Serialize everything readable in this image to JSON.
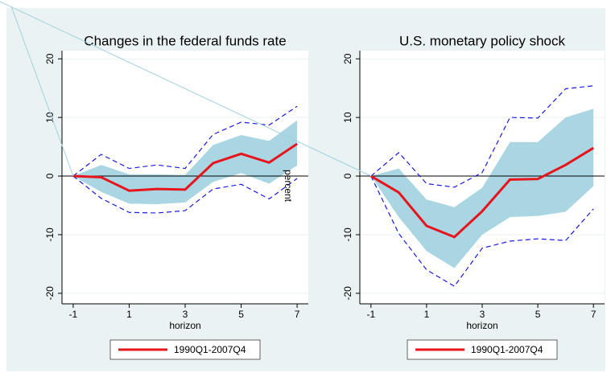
{
  "chart_data": [
    {
      "type": "line",
      "title": "Changes in the federal funds rate",
      "xlabel": "horizon",
      "ylabel": "percent",
      "x": [
        -1,
        0,
        1,
        2,
        3,
        4,
        5,
        6,
        7
      ],
      "xlim": [
        -1.4,
        7.4
      ],
      "xticks": [
        -1,
        1,
        3,
        5,
        7
      ],
      "ylim": [
        -21.8,
        21.4
      ],
      "yticks": [
        -20,
        -10,
        0,
        10,
        20
      ],
      "grid": true,
      "series": [
        {
          "name": "1990Q1-2007Q4",
          "color": "#e8141c",
          "values": [
            0,
            -0.2,
            -2.5,
            -2.2,
            -2.3,
            2.2,
            3.8,
            2.3,
            5.5
          ]
        }
      ],
      "band": {
        "color": "#a9d6e2",
        "upper": [
          0,
          1.9,
          0.3,
          0.3,
          0.2,
          5.3,
          7.0,
          6.0,
          9.5
        ],
        "lower": [
          0,
          -2.7,
          -4.7,
          -4.8,
          -4.5,
          -1.0,
          0.5,
          -1.3,
          1.8
        ]
      },
      "interval": {
        "color": "#1a1ae6",
        "upper": [
          0,
          3.7,
          1.3,
          1.9,
          1.3,
          7.1,
          9.2,
          8.7,
          11.9
        ],
        "lower": [
          0,
          -3.8,
          -6.2,
          -6.3,
          -5.9,
          -2.2,
          -1.4,
          -3.9,
          -0.4
        ]
      }
    },
    {
      "type": "line",
      "title": "U.S. monetary policy shock",
      "xlabel": "horizon",
      "x": [
        -1,
        0,
        1,
        2,
        3,
        4,
        5,
        6,
        7
      ],
      "xlim": [
        -1.4,
        7.4
      ],
      "xticks": [
        -1,
        1,
        3,
        5,
        7
      ],
      "ylim": [
        -21.8,
        21.4
      ],
      "yticks": [
        -20,
        -10,
        0,
        10,
        20
      ],
      "grid": true,
      "series": [
        {
          "name": "1990Q1-2007Q4",
          "color": "#e8141c",
          "values": [
            0,
            -2.8,
            -8.5,
            -10.4,
            -6.0,
            -0.6,
            -0.5,
            1.9,
            4.8
          ]
        }
      ],
      "band": {
        "color": "#a9d6e2",
        "upper": [
          0,
          1.3,
          -4.0,
          -5.3,
          -2.0,
          5.8,
          5.8,
          10.0,
          11.5
        ],
        "lower": [
          0,
          -7.0,
          -12.8,
          -15.7,
          -10.0,
          -7.0,
          -6.8,
          -6.1,
          -1.7
        ]
      },
      "interval": {
        "color": "#1a1ae6",
        "upper": [
          0,
          4.0,
          -1.3,
          -1.9,
          0.6,
          10.0,
          9.9,
          14.9,
          15.4
        ],
        "lower": [
          0,
          -9.8,
          -16.0,
          -18.8,
          -12.3,
          -11.1,
          -10.7,
          -11.0,
          -5.6
        ]
      }
    }
  ]
}
